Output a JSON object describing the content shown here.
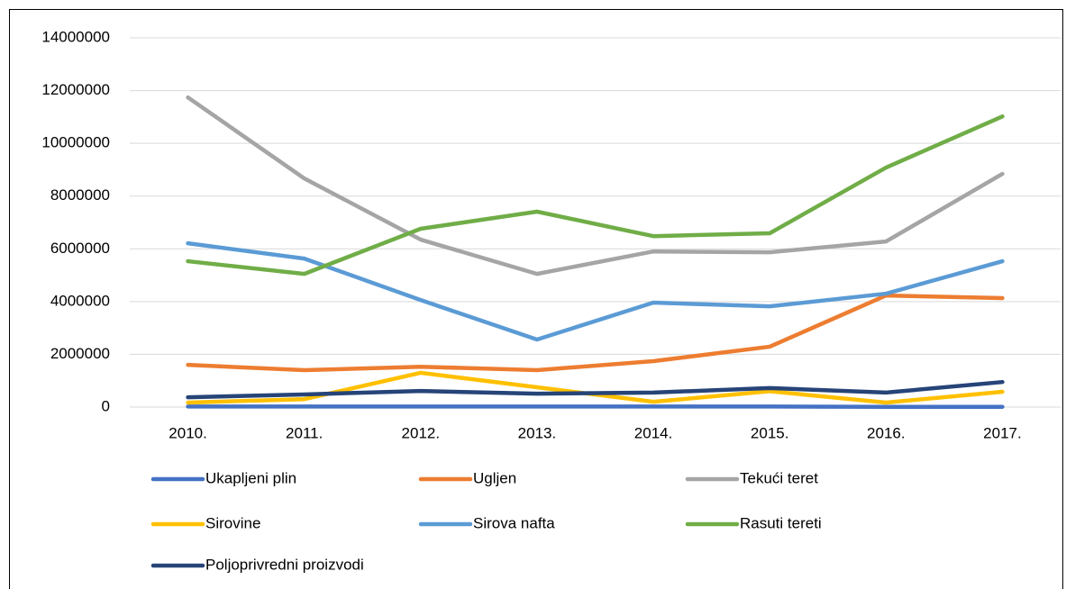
{
  "chart_data": {
    "type": "line",
    "categories": [
      "2010.",
      "2011.",
      "2012.",
      "2013.",
      "2014.",
      "2015.",
      "2016.",
      "2017."
    ],
    "ylim": [
      0,
      14000000
    ],
    "yticks": [
      0,
      2000000,
      4000000,
      6000000,
      8000000,
      10000000,
      12000000,
      14000000
    ],
    "grid": true,
    "legend": "bottom",
    "series": [
      {
        "name": "Ukapljeni plin",
        "color": "#4472c4",
        "values": [
          20000,
          20000,
          20000,
          20000,
          20000,
          20000,
          10000,
          10000
        ]
      },
      {
        "name": "Ugljen",
        "color": "#ed7d31",
        "values": [
          1600000,
          1400000,
          1530000,
          1400000,
          1740000,
          2290000,
          4230000,
          4130000
        ]
      },
      {
        "name": "Tekući teret",
        "color": "#a5a5a5",
        "values": [
          11740000,
          8670000,
          6350000,
          5050000,
          5900000,
          5870000,
          6280000,
          8840000
        ]
      },
      {
        "name": "Sirovine",
        "color": "#ffc000",
        "values": [
          170000,
          300000,
          1300000,
          750000,
          200000,
          600000,
          170000,
          580000
        ]
      },
      {
        "name": "Sirova nafta",
        "color": "#5b9bd5",
        "values": [
          6210000,
          5630000,
          4060000,
          2560000,
          3960000,
          3820000,
          4300000,
          5530000
        ]
      },
      {
        "name": "Rasuti tereti",
        "color": "#70ad47",
        "values": [
          5530000,
          5050000,
          6760000,
          7410000,
          6480000,
          6590000,
          9080000,
          11020000
        ]
      },
      {
        "name": "Poljoprivredni proizvodi",
        "color": "#264478",
        "values": [
          370000,
          480000,
          610000,
          510000,
          550000,
          720000,
          550000,
          950000
        ]
      }
    ]
  }
}
